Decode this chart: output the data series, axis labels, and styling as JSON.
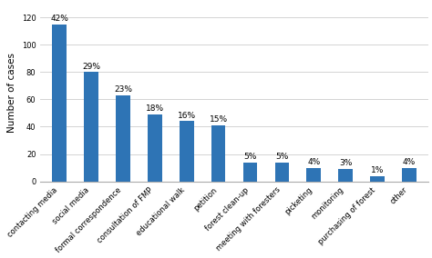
{
  "categories": [
    "contacting media",
    "social media",
    "formal correspondence",
    "consultation of FMP",
    "educational walk",
    "petition",
    "forest clean-up",
    "meeting with foresters",
    "picketing",
    "monitoring",
    "purchasing of forest",
    "other"
  ],
  "values": [
    115,
    80,
    63,
    49,
    44,
    41,
    14,
    14,
    10,
    9,
    4,
    10
  ],
  "percentages": [
    "42%",
    "29%",
    "23%",
    "18%",
    "16%",
    "15%",
    "5%",
    "5%",
    "4%",
    "3%",
    "1%",
    "4%"
  ],
  "bar_color": "#2E74B5",
  "ylabel": "Number of cases",
  "ylim": [
    0,
    130
  ],
  "yticks": [
    0,
    20,
    40,
    60,
    80,
    100,
    120
  ],
  "bar_width": 0.45,
  "label_fontsize": 6.5,
  "tick_fontsize": 6.0,
  "ylabel_fontsize": 7.5,
  "background_color": "#ffffff",
  "grid_color": "#cccccc"
}
